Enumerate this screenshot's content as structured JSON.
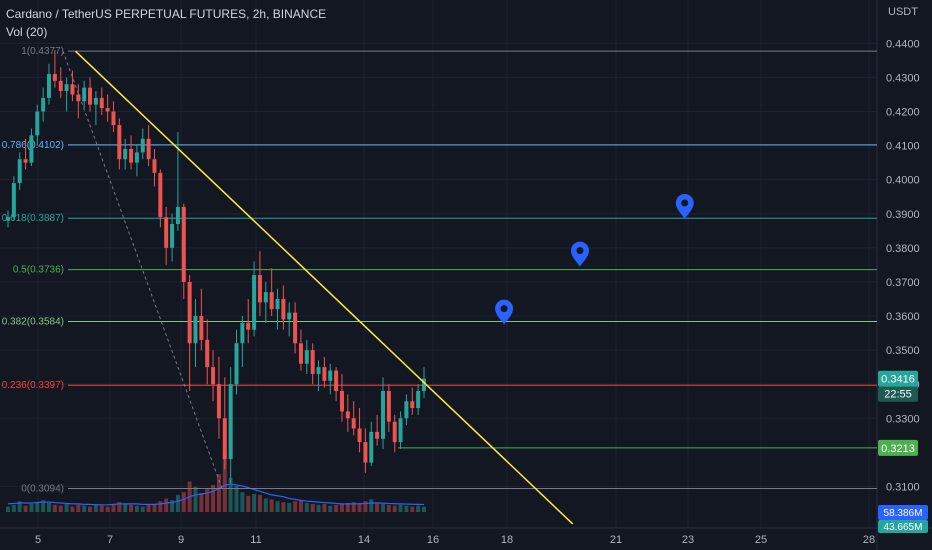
{
  "header": {
    "title": "Cardano / TetherUS PERPETUAL FUTURES, 2h, BINANCE",
    "volume_label": "Vol (20)",
    "price_unit": "USDT"
  },
  "colors": {
    "background": "#131722",
    "grid": "#1e2230",
    "up": "#26a69a",
    "down": "#ef5350",
    "trendline": "#ffeb3b",
    "volume_ma": "#2962ff",
    "marker": "#2962ff"
  },
  "chart_data": {
    "type": "candlestick",
    "y_axis": {
      "ticks": [
        "0.4400",
        "0.4300",
        "0.4200",
        "0.4100",
        "0.4000",
        "0.3900",
        "0.3800",
        "0.3700",
        "0.3600",
        "0.3500",
        "0.3400",
        "0.3300",
        "0.3100"
      ],
      "range": [
        0.3025,
        0.4445
      ]
    },
    "x_axis": {
      "ticks": [
        "5",
        "7",
        "9",
        "11",
        "14",
        "16",
        "18",
        "21",
        "23",
        "25",
        "28"
      ]
    },
    "fib_levels": [
      {
        "ratio": 1,
        "price": 0.4377,
        "label": "1(0.4377)",
        "color": "#787b86"
      },
      {
        "ratio": 0.786,
        "price": 0.4102,
        "label": "0.786(0.4102)",
        "color": "#64b5f6"
      },
      {
        "ratio": 0.618,
        "price": 0.3887,
        "label": "0.618(0.3887)",
        "color": "#26a69a"
      },
      {
        "ratio": 0.5,
        "price": 0.3736,
        "label": "0.5(0.3736)",
        "color": "#4caf50"
      },
      {
        "ratio": 0.382,
        "price": 0.3584,
        "label": "0.382(0.3584)",
        "color": "#81c784"
      },
      {
        "ratio": 0.236,
        "price": 0.3397,
        "label": "0.236(0.3397)",
        "color": "#f44336"
      },
      {
        "ratio": 0,
        "price": 0.3094,
        "label": "0(0.3094)",
        "color": "#787b86"
      }
    ],
    "horizontal_line": {
      "price": 0.3213,
      "color": "#4caf50"
    },
    "trendline": {
      "from": {
        "day": 5.9,
        "price": 0.4377
      },
      "to": {
        "day": 19.8,
        "price": 0.299
      }
    },
    "price_labels": [
      {
        "value": "0.3416",
        "sub": "22:55",
        "color": "#26a69a"
      },
      {
        "value": "0.3213",
        "sub": "",
        "color": "#4caf50"
      }
    ],
    "volume_labels": [
      {
        "value": "58.386M",
        "color": "#2962ff"
      },
      {
        "value": "43.665M",
        "color": "#26a69a"
      }
    ],
    "markers": [
      {
        "day": 17.9,
        "price": 0.361
      },
      {
        "day": 20.0,
        "price": 0.378
      },
      {
        "day": 22.9,
        "price": 0.392
      }
    ],
    "candles": [
      [
        0.388,
        0.391,
        0.386,
        0.389
      ],
      [
        0.389,
        0.401,
        0.388,
        0.399
      ],
      [
        0.399,
        0.408,
        0.397,
        0.406
      ],
      [
        0.406,
        0.412,
        0.403,
        0.405
      ],
      [
        0.405,
        0.415,
        0.404,
        0.413
      ],
      [
        0.413,
        0.422,
        0.41,
        0.42
      ],
      [
        0.42,
        0.427,
        0.417,
        0.424
      ],
      [
        0.424,
        0.434,
        0.422,
        0.431
      ],
      [
        0.431,
        0.438,
        0.427,
        0.429
      ],
      [
        0.429,
        0.433,
        0.424,
        0.426
      ],
      [
        0.426,
        0.43,
        0.42,
        0.428
      ],
      [
        0.428,
        0.432,
        0.423,
        0.425
      ],
      [
        0.425,
        0.428,
        0.418,
        0.423
      ],
      [
        0.423,
        0.429,
        0.421,
        0.427
      ],
      [
        0.427,
        0.43,
        0.42,
        0.422
      ],
      [
        0.422,
        0.426,
        0.416,
        0.424
      ],
      [
        0.424,
        0.427,
        0.419,
        0.421
      ],
      [
        0.421,
        0.425,
        0.417,
        0.42
      ],
      [
        0.42,
        0.423,
        0.414,
        0.416
      ],
      [
        0.416,
        0.418,
        0.403,
        0.406
      ],
      [
        0.406,
        0.412,
        0.403,
        0.409
      ],
      [
        0.409,
        0.413,
        0.403,
        0.405
      ],
      [
        0.405,
        0.41,
        0.401,
        0.408
      ],
      [
        0.408,
        0.415,
        0.406,
        0.412
      ],
      [
        0.412,
        0.416,
        0.404,
        0.406
      ],
      [
        0.406,
        0.409,
        0.398,
        0.402
      ],
      [
        0.402,
        0.403,
        0.386,
        0.389
      ],
      [
        0.389,
        0.392,
        0.375,
        0.38
      ],
      [
        0.38,
        0.39,
        0.376,
        0.387
      ],
      [
        0.387,
        0.414,
        0.385,
        0.392
      ],
      [
        0.392,
        0.393,
        0.365,
        0.37
      ],
      [
        0.37,
        0.372,
        0.338,
        0.352
      ],
      [
        0.352,
        0.365,
        0.345,
        0.36
      ],
      [
        0.36,
        0.368,
        0.35,
        0.353
      ],
      [
        0.353,
        0.359,
        0.34,
        0.345
      ],
      [
        0.345,
        0.35,
        0.335,
        0.34
      ],
      [
        0.34,
        0.348,
        0.324,
        0.33
      ],
      [
        0.33,
        0.342,
        0.315,
        0.318
      ],
      [
        0.318,
        0.345,
        0.311,
        0.34
      ],
      [
        0.34,
        0.356,
        0.337,
        0.352
      ],
      [
        0.352,
        0.36,
        0.345,
        0.358
      ],
      [
        0.358,
        0.365,
        0.352,
        0.356
      ],
      [
        0.356,
        0.376,
        0.354,
        0.372
      ],
      [
        0.372,
        0.379,
        0.36,
        0.364
      ],
      [
        0.364,
        0.37,
        0.358,
        0.367
      ],
      [
        0.367,
        0.374,
        0.36,
        0.362
      ],
      [
        0.362,
        0.368,
        0.356,
        0.365
      ],
      [
        0.365,
        0.369,
        0.356,
        0.359
      ],
      [
        0.359,
        0.364,
        0.354,
        0.361
      ],
      [
        0.361,
        0.364,
        0.349,
        0.352
      ],
      [
        0.352,
        0.356,
        0.344,
        0.346
      ],
      [
        0.346,
        0.353,
        0.343,
        0.35
      ],
      [
        0.35,
        0.352,
        0.34,
        0.343
      ],
      [
        0.343,
        0.347,
        0.338,
        0.345
      ],
      [
        0.345,
        0.348,
        0.339,
        0.341
      ],
      [
        0.341,
        0.346,
        0.337,
        0.344
      ],
      [
        0.344,
        0.345,
        0.335,
        0.338
      ],
      [
        0.338,
        0.343,
        0.329,
        0.332
      ],
      [
        0.332,
        0.337,
        0.326,
        0.33
      ],
      [
        0.33,
        0.335,
        0.325,
        0.327
      ],
      [
        0.327,
        0.333,
        0.32,
        0.323
      ],
      [
        0.323,
        0.327,
        0.314,
        0.317
      ],
      [
        0.317,
        0.329,
        0.316,
        0.326
      ],
      [
        0.326,
        0.331,
        0.322,
        0.324
      ],
      [
        0.324,
        0.342,
        0.321,
        0.338
      ],
      [
        0.338,
        0.34,
        0.326,
        0.329
      ],
      [
        0.329,
        0.331,
        0.32,
        0.323
      ],
      [
        0.323,
        0.332,
        0.321,
        0.33
      ],
      [
        0.33,
        0.337,
        0.328,
        0.335
      ],
      [
        0.335,
        0.339,
        0.331,
        0.333
      ],
      [
        0.333,
        0.34,
        0.331,
        0.338
      ],
      [
        0.338,
        0.345,
        0.336,
        0.3416
      ]
    ],
    "volume": [
      0.6,
      0.8,
      1.2,
      0.7,
      0.9,
      1.1,
      1.3,
      1.0,
      0.8,
      0.7,
      0.9,
      0.6,
      0.8,
      0.7,
      0.6,
      0.9,
      0.7,
      0.6,
      0.8,
      1.1,
      0.9,
      0.8,
      0.7,
      0.6,
      0.9,
      0.8,
      1.2,
      1.5,
      1.3,
      1.9,
      2.2,
      3.4,
      2.8,
      2.1,
      2.6,
      3.0,
      4.2,
      6.5,
      3.8,
      2.9,
      2.2,
      1.8,
      2.0,
      1.9,
      1.5,
      1.4,
      1.2,
      1.1,
      1.0,
      1.2,
      1.3,
      1.0,
      0.9,
      0.8,
      0.9,
      0.7,
      0.8,
      0.9,
      1.0,
      1.1,
      0.9,
      1.2,
      1.4,
      1.0,
      0.9,
      0.8,
      0.7,
      0.8,
      0.7,
      0.6,
      0.7,
      0.6
    ],
    "volume_ma": [
      0.9,
      0.95,
      1.0,
      1.0,
      1.0,
      1.05,
      1.1,
      1.1,
      1.05,
      1.0,
      0.95,
      0.9,
      0.9,
      0.85,
      0.85,
      0.8,
      0.8,
      0.8,
      0.85,
      0.9,
      0.9,
      0.9,
      0.9,
      0.85,
      0.85,
      0.85,
      0.9,
      1.0,
      1.05,
      1.2,
      1.4,
      1.7,
      1.9,
      2.0,
      2.1,
      2.3,
      2.6,
      3.0,
      3.1,
      3.0,
      2.9,
      2.7,
      2.5,
      2.3,
      2.1,
      1.9,
      1.8,
      1.7,
      1.5,
      1.4,
      1.3,
      1.2,
      1.15,
      1.1,
      1.05,
      1.0,
      0.95,
      0.9,
      0.9,
      0.9,
      0.92,
      0.95,
      1.0,
      1.0,
      0.98,
      0.95,
      0.92,
      0.9,
      0.88,
      0.86,
      0.85,
      0.84
    ]
  }
}
